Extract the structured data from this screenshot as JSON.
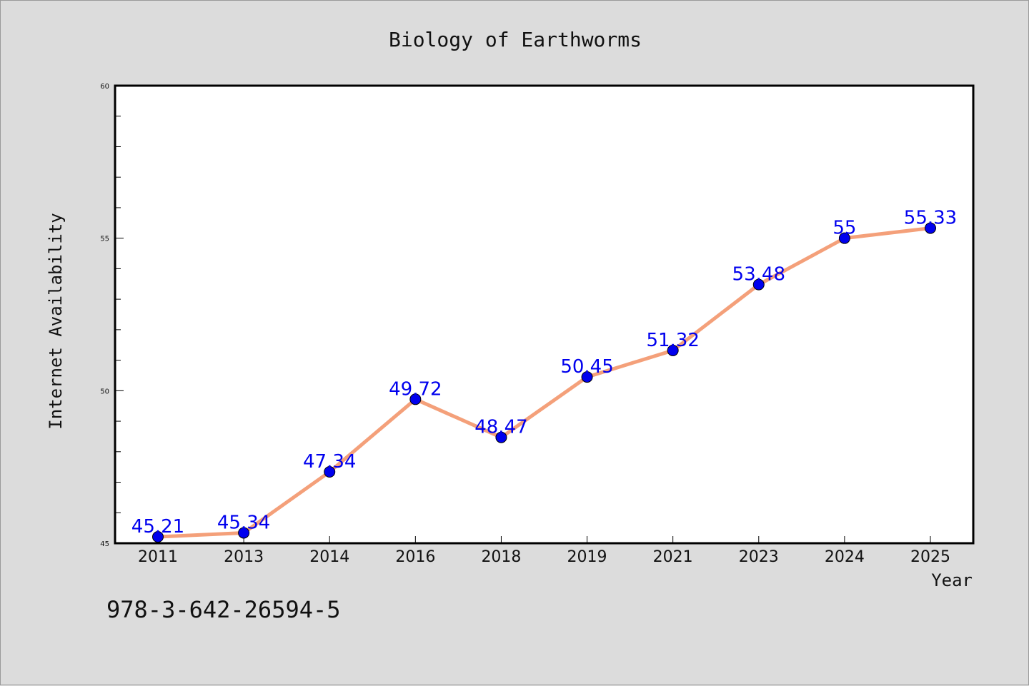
{
  "chart_data": {
    "type": "line",
    "title": "Biology of Earthworms",
    "xlabel": "Year",
    "ylabel": "Internet Availability",
    "categories": [
      "2011",
      "2013",
      "2014",
      "2016",
      "2018",
      "2019",
      "2021",
      "2023",
      "2024",
      "2025"
    ],
    "series": [
      {
        "values": [
          45.21,
          45.34,
          47.34,
          49.72,
          48.47,
          50.45,
          51.32,
          53.48,
          55,
          55.33
        ],
        "labels": [
          "45.21",
          "45.34",
          "47.34",
          "49.72",
          "48.47",
          "50.45",
          "51.32",
          "53.48",
          "55",
          "55.33"
        ]
      }
    ],
    "ylim": [
      45,
      60
    ],
    "yticks": [
      "45",
      "50",
      "55",
      "60"
    ],
    "grid": false,
    "line_color": "#f4a07a",
    "marker_color": "#0000ee",
    "label_color": "#0000ee"
  },
  "footer": {
    "isbn": "978-3-642-26594-5"
  }
}
